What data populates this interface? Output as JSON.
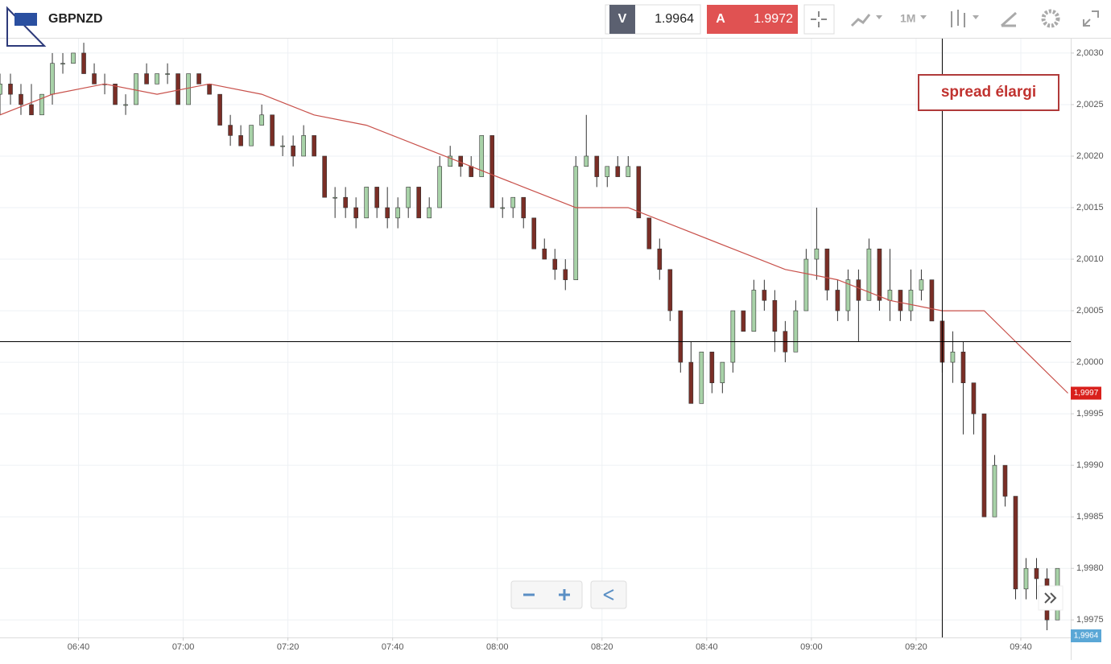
{
  "header": {
    "symbol": "GBPNZD",
    "bid_label": "V",
    "bid": "1.9964",
    "ask_label": "A",
    "ask": "1.9972",
    "timeframe": "1M"
  },
  "chart_data": {
    "type": "candlestick",
    "annotation": "spread élargi",
    "up_color": "#a8d2a8",
    "down_color": "#7a2e26",
    "grid": true,
    "xlim": [
      "06:25",
      "09:50"
    ],
    "ylim": [
      1.99733,
      2.00314
    ],
    "xticks": [
      "06:40",
      "07:00",
      "07:20",
      "07:40",
      "08:00",
      "08:20",
      "08:40",
      "09:00",
      "09:20",
      "09:40"
    ],
    "yticks": [
      {
        "value": 1.9975,
        "label": "1,9975"
      },
      {
        "value": 1.998,
        "label": "1,9980"
      },
      {
        "value": 1.9985,
        "label": "1,9985"
      },
      {
        "value": 1.999,
        "label": "1,9990"
      },
      {
        "value": 1.9995,
        "label": "1,9995"
      },
      {
        "value": 2.0,
        "label": "2,0000"
      },
      {
        "value": 2.0005,
        "label": "2,0005"
      },
      {
        "value": 2.001,
        "label": "2,0010"
      },
      {
        "value": 2.0015,
        "label": "2,0015"
      },
      {
        "value": 2.002,
        "label": "2,0020"
      },
      {
        "value": 2.0025,
        "label": "2,0025"
      },
      {
        "value": 2.003,
        "label": "2,0030"
      }
    ],
    "x": [
      "06:25",
      "06:27",
      "06:29",
      "06:31",
      "06:33",
      "06:35",
      "06:37",
      "06:39",
      "06:41",
      "06:43",
      "06:45",
      "06:47",
      "06:49",
      "06:51",
      "06:53",
      "06:55",
      "06:57",
      "06:59",
      "07:01",
      "07:03",
      "07:05",
      "07:07",
      "07:09",
      "07:11",
      "07:13",
      "07:15",
      "07:17",
      "07:19",
      "07:21",
      "07:23",
      "07:25",
      "07:27",
      "07:29",
      "07:31",
      "07:33",
      "07:35",
      "07:37",
      "07:39",
      "07:41",
      "07:43",
      "07:45",
      "07:47",
      "07:49",
      "07:51",
      "07:53",
      "07:55",
      "07:57",
      "07:59",
      "08:01",
      "08:03",
      "08:05",
      "08:07",
      "08:09",
      "08:11",
      "08:13",
      "08:15",
      "08:17",
      "08:19",
      "08:21",
      "08:23",
      "08:25",
      "08:27",
      "08:29",
      "08:31",
      "08:33",
      "08:35",
      "08:37",
      "08:39",
      "08:41",
      "08:43",
      "08:45",
      "08:47",
      "08:49",
      "08:51",
      "08:53",
      "08:55",
      "08:57",
      "08:59",
      "09:01",
      "09:03",
      "09:05",
      "09:07",
      "09:09",
      "09:11",
      "09:13",
      "09:15",
      "09:17",
      "09:19",
      "09:21",
      "09:23",
      "09:25",
      "09:27",
      "09:29",
      "09:31",
      "09:33",
      "09:35",
      "09:37",
      "09:39",
      "09:41",
      "09:43",
      "09:45",
      "09:47"
    ],
    "open": [
      2.0026,
      2.0027,
      2.0026,
      2.0025,
      2.0024,
      2.0026,
      2.0029,
      2.0029,
      2.003,
      2.0028,
      2.0027,
      2.0027,
      2.0025,
      2.0025,
      2.0028,
      2.0027,
      2.0028,
      2.0028,
      2.0025,
      2.0028,
      2.0027,
      2.0026,
      2.0023,
      2.0022,
      2.0021,
      2.0023,
      2.0024,
      2.0021,
      2.0021,
      2.002,
      2.0022,
      2.002,
      2.0016,
      2.0016,
      2.0015,
      2.0014,
      2.0017,
      2.0015,
      2.0014,
      2.0015,
      2.0017,
      2.0014,
      2.0015,
      2.0019,
      2.002,
      2.0019,
      2.0018,
      2.0022,
      2.0015,
      2.0015,
      2.0016,
      2.0014,
      2.0011,
      2.001,
      2.0009,
      2.0008,
      2.0019,
      2.002,
      2.0018,
      2.0019,
      2.0018,
      2.0019,
      2.0014,
      2.0011,
      2.0009,
      2.0005,
      2.0,
      1.9996,
      2.0001,
      1.9998,
      2.0,
      2.0005,
      2.0003,
      2.0007,
      2.0006,
      2.0003,
      2.0001,
      2.0005,
      2.001,
      2.0011,
      2.0007,
      2.0005,
      2.0008,
      2.0006,
      2.0011,
      2.0006,
      2.0007,
      2.0005,
      2.0007,
      2.0008,
      2.0004,
      2.0,
      2.0001,
      1.9998,
      1.9995,
      1.9985,
      1.999,
      1.9987,
      1.9978,
      1.998,
      1.9979,
      1.9975
    ],
    "high": [
      2.0028,
      2.0028,
      2.0027,
      2.0027,
      2.0026,
      2.003,
      2.003,
      2.003,
      2.0031,
      2.0029,
      2.0028,
      2.0027,
      2.0026,
      2.0028,
      2.0029,
      2.0028,
      2.0029,
      2.0028,
      2.0028,
      2.0028,
      2.0027,
      2.0026,
      2.0024,
      2.0023,
      2.0023,
      2.0025,
      2.0024,
      2.0022,
      2.0022,
      2.0023,
      2.0022,
      2.002,
      2.0017,
      2.0017,
      2.0016,
      2.0017,
      2.0017,
      2.0017,
      2.0016,
      2.0017,
      2.0017,
      2.0016,
      2.002,
      2.0021,
      2.002,
      2.002,
      2.0022,
      2.0022,
      2.0016,
      2.0016,
      2.0016,
      2.0014,
      2.0012,
      2.0011,
      2.001,
      2.002,
      2.0024,
      2.002,
      2.0019,
      2.002,
      2.002,
      2.0019,
      2.0014,
      2.0012,
      2.0009,
      2.0005,
      2.0002,
      2.0001,
      2.0001,
      2.0,
      2.0005,
      2.0005,
      2.0008,
      2.0008,
      2.0007,
      2.0004,
      2.0006,
      2.0011,
      2.0015,
      2.0011,
      2.0008,
      2.0009,
      2.0009,
      2.0012,
      2.0011,
      2.0011,
      2.0007,
      2.0009,
      2.0009,
      2.0008,
      2.0004,
      2.0003,
      2.0002,
      1.9998,
      1.9995,
      1.9991,
      1.999,
      1.9987,
      1.9981,
      1.9981,
      1.998,
      1.998
    ],
    "low": [
      2.0024,
      2.0025,
      2.0024,
      2.0024,
      2.0024,
      2.0025,
      2.0028,
      2.0029,
      2.0028,
      2.0027,
      2.0026,
      2.0025,
      2.0024,
      2.0025,
      2.0027,
      2.0027,
      2.0027,
      2.0025,
      2.0025,
      2.0027,
      2.0026,
      2.0023,
      2.0021,
      2.0021,
      2.0021,
      2.0023,
      2.0021,
      2.002,
      2.0019,
      2.002,
      2.002,
      2.0016,
      2.0014,
      2.0014,
      2.0013,
      2.0014,
      2.0014,
      2.0013,
      2.0013,
      2.0014,
      2.0014,
      2.0014,
      2.0015,
      2.0019,
      2.0018,
      2.0018,
      2.0018,
      2.0015,
      2.0014,
      2.0014,
      2.0013,
      2.0011,
      2.001,
      2.0008,
      2.0007,
      2.0008,
      2.0019,
      2.0017,
      2.0017,
      2.0018,
      2.0018,
      2.0014,
      2.0011,
      2.0008,
      2.0004,
      1.9999,
      1.9996,
      1.9996,
      1.9997,
      1.9997,
      1.9999,
      2.0003,
      2.0003,
      2.0005,
      2.0001,
      2.0,
      2.0001,
      2.0005,
      2.0008,
      2.0006,
      2.0004,
      2.0004,
      2.0002,
      2.0006,
      2.0005,
      2.0004,
      2.0004,
      2.0004,
      2.0006,
      2.0004,
      1.9999,
      1.9998,
      1.9993,
      1.9993,
      1.9985,
      1.9985,
      1.9986,
      1.9977,
      1.9977,
      1.9977,
      1.9974,
      1.9975
    ],
    "close": [
      2.0027,
      2.0026,
      2.0025,
      2.0024,
      2.0026,
      2.0029,
      2.0029,
      2.003,
      2.0028,
      2.0027,
      2.0027,
      2.0025,
      2.0025,
      2.0028,
      2.0027,
      2.0028,
      2.0028,
      2.0025,
      2.0028,
      2.0027,
      2.0026,
      2.0023,
      2.0022,
      2.0021,
      2.0023,
      2.0024,
      2.0021,
      2.0021,
      2.002,
      2.0022,
      2.002,
      2.0016,
      2.0016,
      2.0015,
      2.0014,
      2.0017,
      2.0015,
      2.0014,
      2.0015,
      2.0017,
      2.0014,
      2.0015,
      2.0019,
      2.002,
      2.0019,
      2.0018,
      2.0022,
      2.0015,
      2.0015,
      2.0016,
      2.0014,
      2.0011,
      2.001,
      2.0009,
      2.0008,
      2.0019,
      2.002,
      2.0018,
      2.0019,
      2.0018,
      2.0019,
      2.0014,
      2.0011,
      2.0009,
      2.0005,
      2.0,
      1.9996,
      2.0001,
      1.9998,
      2.0,
      2.0005,
      2.0003,
      2.0007,
      2.0006,
      2.0003,
      2.0001,
      2.0005,
      2.001,
      2.0011,
      2.0007,
      2.0005,
      2.0008,
      2.0006,
      2.0011,
      2.0006,
      2.0007,
      2.0005,
      2.0007,
      2.0008,
      2.0004,
      2.0,
      2.0001,
      1.9998,
      1.9995,
      1.9985,
      1.999,
      1.9987,
      1.9978,
      1.998,
      1.9979,
      1.9975,
      1.998
    ],
    "moving_average": {
      "color": "#c8504a",
      "x": [
        "06:25",
        "06:35",
        "06:45",
        "06:55",
        "07:05",
        "07:15",
        "07:25",
        "07:35",
        "07:45",
        "07:55",
        "08:05",
        "08:15",
        "08:25",
        "08:35",
        "08:45",
        "08:55",
        "09:05",
        "09:15",
        "09:25",
        "09:33",
        "09:39",
        "09:49"
      ],
      "values": [
        2.0024,
        2.0026,
        2.0027,
        2.0026,
        2.0027,
        2.0026,
        2.0024,
        2.0023,
        2.0021,
        2.0019,
        2.0017,
        2.0015,
        2.0015,
        2.0013,
        2.0011,
        2.0009,
        2.0008,
        2.0006,
        2.0005,
        2.0005,
        2.0002,
        1.9997
      ]
    },
    "hline": 2.0002,
    "vline": "09:25",
    "ma_tag": {
      "value": 1.9997,
      "label": "1,9997"
    },
    "last_tag": {
      "value": 1.9964,
      "label": "1,9964"
    }
  }
}
